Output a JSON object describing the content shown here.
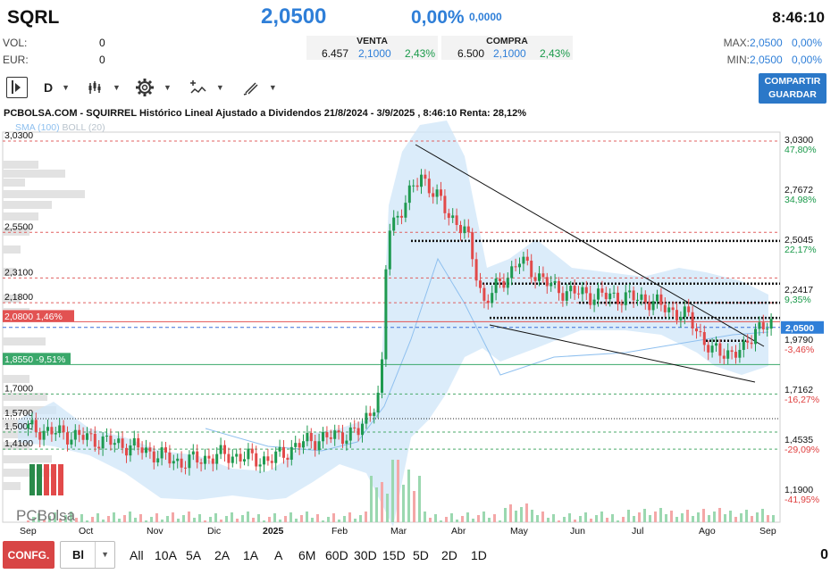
{
  "header": {
    "ticker": "SQRL",
    "price": "2,0500",
    "change_pct": "0,00%",
    "change_abs": "0,0000",
    "time": "8:46:10",
    "vol_label": "VOL:",
    "vol_value": "0",
    "eur_label": "EUR:",
    "eur_value": "0",
    "venta": {
      "label": "VENTA",
      "qty": "6.457",
      "price": "2,1000",
      "pct": "2,43%"
    },
    "compra": {
      "label": "COMPRA",
      "qty": "6.500",
      "price": "2,1000",
      "pct": "2,43%"
    },
    "max_label": "MAX:",
    "max_value": "2,0500",
    "max_pct": "0,00%",
    "min_label": "MIN:",
    "min_value": "2,0500",
    "min_pct": "0,00%"
  },
  "toolbar": {
    "period": "D",
    "share_label_1": "COMPARTIR",
    "share_label_2": "GUARDAR"
  },
  "chart_data": {
    "type": "candlestick",
    "title": "PCBOLSA.COM - SQUIRREL Histórico Lineal Ajustado a Dividendos 21/8/2024 - 3/9/2025 , 8:46:10 Renta: 28,12%",
    "legend": {
      "sma": "SMA (100)",
      "boll": "BOLL (20)"
    },
    "x_months": [
      "Sep",
      "Oct",
      "Nov",
      "Dic",
      "2025",
      "Feb",
      "Mar",
      "Abr",
      "May",
      "Jun",
      "Jul",
      "Ago",
      "Sep"
    ],
    "left_levels": [
      {
        "value": 3.03,
        "label": "3,0300",
        "style": "red-dash"
      },
      {
        "value": 2.55,
        "label": "2,5500",
        "style": "red-dash"
      },
      {
        "value": 2.31,
        "label": "2,3100",
        "style": "red-dash"
      },
      {
        "value": 2.18,
        "label": "2,1800",
        "style": "red-dash"
      },
      {
        "value": 2.08,
        "label": "2,0800",
        "pct": "1,46%",
        "style": "red-box"
      },
      {
        "value": 1.855,
        "label": "1,8550",
        "pct": "-9,51%",
        "style": "green-box"
      },
      {
        "value": 1.7,
        "label": "1,7000",
        "style": "green-dash"
      },
      {
        "value": 1.57,
        "label": "1,5700",
        "style": "black-dot"
      },
      {
        "value": 1.5,
        "label": "1,5000",
        "style": "green-dash"
      },
      {
        "value": 1.41,
        "label": "1,4100",
        "style": "green-dash"
      }
    ],
    "right_levels": [
      {
        "value": 3.03,
        "label": "3,0300",
        "pct": "47,80%"
      },
      {
        "value": 2.7672,
        "label": "2,7672",
        "pct": "34,98%"
      },
      {
        "value": 2.5045,
        "label": "2,5045",
        "pct": "22,17%"
      },
      {
        "value": 2.2417,
        "label": "2,2417",
        "pct": "9,35%"
      },
      {
        "value": 1.979,
        "label": "1,9790",
        "pct": "-3,46%"
      },
      {
        "value": 1.7162,
        "label": "1,7162",
        "pct": "-16,27%"
      },
      {
        "value": 1.4535,
        "label": "1,4535",
        "pct": "-29,09%"
      },
      {
        "value": 1.19,
        "label": "1,1900",
        "pct": "-41,95%"
      }
    ],
    "current_price": {
      "value": 2.05,
      "label": "2,0500"
    },
    "ylim": [
      1.19,
      3.03
    ],
    "monthly_close": [
      {
        "month": "Sep",
        "close": 1.52
      },
      {
        "month": "Oct",
        "close": 1.46
      },
      {
        "month": "Nov",
        "close": 1.34
      },
      {
        "month": "Dic",
        "close": 1.38
      },
      {
        "month": "2025",
        "close": 1.35
      },
      {
        "month": "Feb",
        "close": 1.47
      },
      {
        "month": "Feb-end",
        "close": 1.72
      },
      {
        "month": "Mar",
        "close": 2.85
      },
      {
        "month": "Mar-end",
        "close": 2.6
      },
      {
        "month": "Abr",
        "close": 2.18
      },
      {
        "month": "May",
        "close": 2.38
      },
      {
        "month": "Jun",
        "close": 2.22
      },
      {
        "month": "Jul",
        "close": 2.2
      },
      {
        "month": "Ago",
        "close": 1.9
      },
      {
        "month": "Sep",
        "close": 2.05
      }
    ]
  },
  "bottom": {
    "config_label": "CONFG.",
    "type_value": "Bl",
    "ranges": [
      "All",
      "10A",
      "5A",
      "2A",
      "1A",
      "A",
      "6M",
      "60D",
      "30D",
      "15D",
      "5D",
      "2D",
      "1D"
    ],
    "counter": "0"
  },
  "logo": {
    "text": "PCBolsa"
  }
}
